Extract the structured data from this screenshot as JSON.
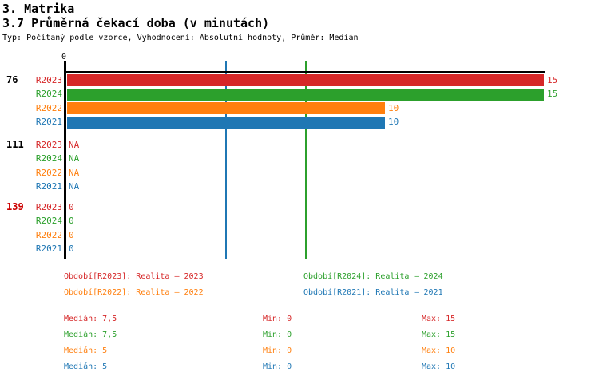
{
  "header": {
    "title": "3. Matrika",
    "subtitle": "3.7 Průměrná čekací doba (v minutách)",
    "meta": "Typ: Počítaný podle vzorce, Vyhodnocení: Absolutní hodnoty, Průměr: Medián"
  },
  "chart_data": {
    "type": "bar",
    "orientation": "horizontal",
    "title": "3.7 Průměrná čekací doba (v minutách)",
    "x_axis": {
      "ticks": [
        "0"
      ],
      "range": [
        0,
        15
      ],
      "grid": false
    },
    "series": [
      {
        "name": "R2023",
        "label": "Realita – 2023",
        "color": "#d62728"
      },
      {
        "name": "R2024",
        "label": "Realita – 2024",
        "color": "#2ca02c"
      },
      {
        "name": "R2022",
        "label": "Realita – 2022",
        "color": "#ff7f0e"
      },
      {
        "name": "R2021",
        "label": "Realita – 2021",
        "color": "#1f77b4"
      }
    ],
    "groups": [
      {
        "label": "76",
        "label_color": "#000000",
        "rows": [
          {
            "series": "R2023",
            "value": 15,
            "display": "15"
          },
          {
            "series": "R2024",
            "value": 15,
            "display": "15"
          },
          {
            "series": "R2022",
            "value": 10,
            "display": "10"
          },
          {
            "series": "R2021",
            "value": 10,
            "display": "10"
          }
        ]
      },
      {
        "label": "111",
        "label_color": "#000000",
        "rows": [
          {
            "series": "R2023",
            "value": null,
            "display": "NA"
          },
          {
            "series": "R2024",
            "value": null,
            "display": "NA"
          },
          {
            "series": "R2022",
            "value": null,
            "display": "NA"
          },
          {
            "series": "R2021",
            "value": null,
            "display": "NA"
          }
        ]
      },
      {
        "label": "139",
        "label_color": "#cc0000",
        "rows": [
          {
            "series": "R2023",
            "value": 0,
            "display": "0"
          },
          {
            "series": "R2024",
            "value": 0,
            "display": "0"
          },
          {
            "series": "R2022",
            "value": 0,
            "display": "0"
          },
          {
            "series": "R2021",
            "value": 0,
            "display": "0"
          }
        ]
      }
    ],
    "reference_lines": [
      {
        "value": 5,
        "color": "#1f77b4"
      },
      {
        "value": 7.5,
        "color": "#2ca02c"
      }
    ]
  },
  "legend": {
    "items": [
      {
        "series": "R2023",
        "text": "Období[R2023]: Realita – 2023",
        "color": "#d62728"
      },
      {
        "series": "R2024",
        "text": "Období[R2024]: Realita – 2024",
        "color": "#2ca02c"
      },
      {
        "series": "R2022",
        "text": "Období[R2022]: Realita – 2022",
        "color": "#ff7f0e"
      },
      {
        "series": "R2021",
        "text": "Období[R2021]: Realita – 2021",
        "color": "#1f77b4"
      }
    ]
  },
  "stats": {
    "rows": [
      {
        "series": "R2023",
        "color": "#d62728",
        "median_text": "Medián: 7,5",
        "min_text": "Min: 0",
        "max_text": "Max: 15"
      },
      {
        "series": "R2024",
        "color": "#2ca02c",
        "median_text": "Medián: 7,5",
        "min_text": "Min: 0",
        "max_text": "Max: 15"
      },
      {
        "series": "R2022",
        "color": "#ff7f0e",
        "median_text": "Medián: 5",
        "min_text": "Min: 0",
        "max_text": "Max: 10"
      },
      {
        "series": "R2021",
        "color": "#1f77b4",
        "median_text": "Medián: 5",
        "min_text": "Min: 0",
        "max_text": "Max: 10"
      }
    ]
  }
}
